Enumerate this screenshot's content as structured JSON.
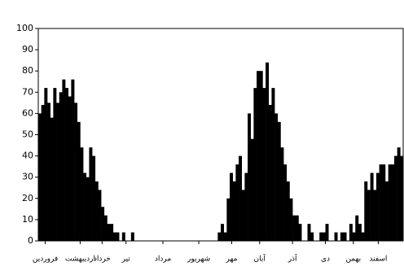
{
  "chart_data": {
    "type": "bar",
    "color": "#000000",
    "x": [
      0,
      3,
      6,
      9,
      12,
      15,
      18,
      21,
      24,
      27,
      30,
      33,
      36,
      39,
      42,
      45,
      48,
      51,
      54,
      57,
      60,
      63,
      66,
      69,
      72,
      75,
      78,
      81,
      84,
      87,
      90,
      93,
      96,
      99,
      102,
      105,
      108,
      111,
      114,
      117,
      120,
      123,
      126,
      129,
      132,
      135,
      138,
      141,
      144,
      147,
      150,
      153,
      156,
      159,
      162,
      165,
      168,
      171,
      174,
      177,
      180,
      183,
      186,
      189,
      192,
      195,
      198,
      201,
      204,
      207,
      210,
      213,
      216,
      219,
      222,
      225,
      228,
      231,
      234,
      237,
      240,
      243,
      246,
      249,
      252,
      255,
      258,
      261,
      264,
      267,
      270,
      273,
      276,
      279,
      282,
      285,
      288,
      291,
      294,
      297,
      300,
      303,
      306,
      309,
      312,
      315,
      318,
      321,
      324,
      327,
      330,
      333,
      336,
      339,
      342,
      345,
      348,
      351,
      354,
      357,
      360,
      363
    ],
    "values": [
      60,
      64,
      72,
      65,
      58,
      72,
      65,
      70,
      76,
      72,
      68,
      76,
      65,
      56,
      44,
      32,
      30,
      44,
      40,
      28,
      24,
      16,
      12,
      8,
      8,
      4,
      4,
      0,
      4,
      0,
      0,
      4,
      0,
      0,
      0,
      0,
      0,
      0,
      0,
      0,
      0,
      0,
      0,
      0,
      0,
      0,
      0,
      0,
      0,
      0,
      0,
      0,
      0,
      0,
      0,
      0,
      0,
      0,
      0,
      0,
      4,
      8,
      4,
      20,
      32,
      28,
      36,
      40,
      24,
      32,
      60,
      48,
      72,
      80,
      80,
      72,
      84,
      64,
      72,
      60,
      56,
      44,
      36,
      28,
      20,
      12,
      12,
      8,
      0,
      0,
      8,
      4,
      0,
      0,
      4,
      4,
      8,
      0,
      0,
      4,
      0,
      4,
      4,
      0,
      8,
      4,
      12,
      8,
      4,
      28,
      24,
      32,
      24,
      32,
      36,
      36,
      28,
      36,
      36,
      40,
      44,
      40
    ],
    "xlim": [
      0,
      366
    ],
    "xticks": [
      {
        "value": 7,
        "label": "فروردین"
      },
      {
        "value": 42,
        "label": "اردیبهشت"
      },
      {
        "value": 64,
        "label": "خرداد"
      },
      {
        "value": 88,
        "label": "تیر"
      },
      {
        "value": 125,
        "label": "مرداد"
      },
      {
        "value": 161,
        "label": "شهریور"
      },
      {
        "value": 194,
        "label": "مهر"
      },
      {
        "value": 222,
        "label": "آبان"
      },
      {
        "value": 255,
        "label": "آذر"
      },
      {
        "value": 288,
        "label": "دی"
      },
      {
        "value": 316,
        "label": "بهمن"
      },
      {
        "value": 341,
        "label": "اسفند"
      }
    ],
    "ylim": [
      0,
      100
    ],
    "yticks": [
      0,
      10,
      20,
      30,
      40,
      50,
      60,
      70,
      80,
      90,
      100
    ],
    "grid": false
  }
}
